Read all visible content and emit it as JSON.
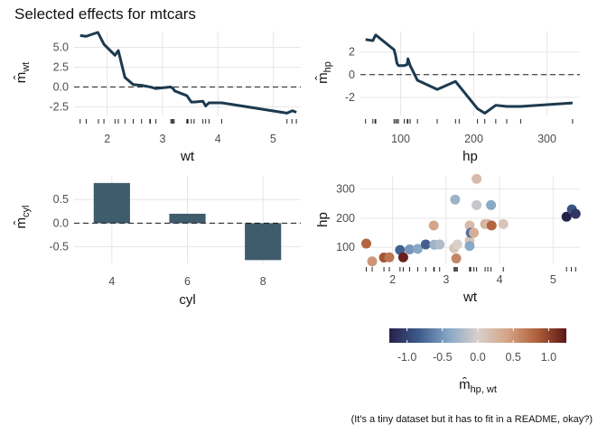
{
  "title": "Selected effects for mtcars",
  "caption": "(It's a tiny dataset but it has to fit in a README, okay?)",
  "colors": {
    "line": "#1c3a4f",
    "bar": "#3f5c6d",
    "grid": "#e6e6e6",
    "dashed": "#1a1a1a",
    "palette": [
      "#26214a",
      "#3d5b8b",
      "#86a6c6",
      "#d8d0cb",
      "#d4a486",
      "#b0603a",
      "#5c1818"
    ]
  },
  "chart_data": [
    {
      "type": "line",
      "xlabel": "wt",
      "ylabel": "m̂",
      "ylabel_sub": "wt",
      "xlim": [
        1.4,
        5.5
      ],
      "ylim": [
        -3.6,
        7.0
      ],
      "xticks": [
        2,
        3,
        4,
        5
      ],
      "yticks": [
        -2.5,
        0.0,
        2.5,
        5.0
      ],
      "ytick_labels": [
        "-2.5",
        "0.0",
        "2.5",
        "5.0"
      ],
      "reference_line": 0,
      "x": [
        1.51,
        1.62,
        1.83,
        1.94,
        2.14,
        2.2,
        2.32,
        2.47,
        2.62,
        2.78,
        2.88,
        3.15,
        3.19,
        3.22,
        3.44,
        3.52,
        3.57,
        3.73,
        3.78,
        3.84,
        4.07,
        5.25,
        5.35,
        5.42
      ],
      "y": [
        6.5,
        6.4,
        6.9,
        5.4,
        4.0,
        4.6,
        1.2,
        0.3,
        0.2,
        0.0,
        -0.2,
        0.0,
        -0.2,
        -0.5,
        -1.1,
        -1.9,
        -1.9,
        -1.8,
        -2.4,
        -2.0,
        -2.0,
        -3.3,
        -3.0,
        -3.2
      ],
      "rug": [
        1.51,
        1.62,
        1.84,
        1.94,
        2.14,
        2.2,
        2.32,
        2.47,
        2.62,
        2.77,
        2.78,
        2.88,
        3.15,
        3.17,
        3.19,
        3.21,
        3.44,
        3.45,
        3.46,
        3.52,
        3.57,
        3.73,
        3.78,
        3.84,
        4.07,
        5.25,
        5.34,
        5.42
      ]
    },
    {
      "type": "line",
      "xlabel": "hp",
      "ylabel": "m̂",
      "ylabel_sub": "hp",
      "xlim": [
        45,
        345
      ],
      "ylim": [
        -3.6,
        3.8
      ],
      "xticks": [
        100,
        200,
        300
      ],
      "yticks": [
        -2,
        0,
        2
      ],
      "ytick_labels": [
        "-2",
        "0",
        "2"
      ],
      "reference_line": 0,
      "x": [
        52,
        62,
        65,
        66,
        91,
        93,
        95,
        97,
        105,
        109,
        110,
        113,
        123,
        150,
        175,
        180,
        205,
        215,
        230,
        245,
        264,
        335
      ],
      "y": [
        3.1,
        3.0,
        3.4,
        3.5,
        2.2,
        1.7,
        1.0,
        0.8,
        0.8,
        0.9,
        1.4,
        0.8,
        -0.5,
        -1.3,
        -0.6,
        -1.0,
        -3.0,
        -3.4,
        -2.7,
        -2.8,
        -2.8,
        -2.5
      ],
      "rug": [
        52,
        62,
        65,
        66,
        91,
        93,
        95,
        97,
        105,
        109,
        110,
        113,
        123,
        150,
        175,
        180,
        205,
        215,
        230,
        245,
        264,
        335
      ]
    },
    {
      "type": "bar",
      "xlabel": "cyl",
      "ylabel": "m̂",
      "ylabel_sub": "cyl",
      "categories": [
        "4",
        "6",
        "8"
      ],
      "values": [
        0.85,
        0.2,
        -0.78
      ],
      "ylim": [
        -0.85,
        1.0
      ],
      "yticks": [
        -0.5,
        0.0,
        0.5
      ],
      "ytick_labels": [
        "-0.5",
        "0.0",
        "0.5"
      ],
      "reference_line": 0
    },
    {
      "type": "scatter",
      "xlabel": "wt",
      "ylabel": "hp",
      "xlim": [
        1.4,
        5.5
      ],
      "ylim": [
        45,
        345
      ],
      "xticks": [
        2,
        3,
        4,
        5
      ],
      "yticks": [
        100,
        200,
        300
      ],
      "points": [
        {
          "x": 1.51,
          "y": 113,
          "m": 0.8
        },
        {
          "x": 1.62,
          "y": 52,
          "m": 0.5
        },
        {
          "x": 1.84,
          "y": 65,
          "m": 0.9
        },
        {
          "x": 1.94,
          "y": 66,
          "m": 0.7
        },
        {
          "x": 2.14,
          "y": 91,
          "m": -0.8
        },
        {
          "x": 2.2,
          "y": 66,
          "m": 1.2
        },
        {
          "x": 2.32,
          "y": 93,
          "m": -0.5
        },
        {
          "x": 2.47,
          "y": 95,
          "m": -0.4
        },
        {
          "x": 2.62,
          "y": 110,
          "m": -0.8
        },
        {
          "x": 2.77,
          "y": 175,
          "m": 0.4
        },
        {
          "x": 2.78,
          "y": 109,
          "m": -0.3
        },
        {
          "x": 2.88,
          "y": 110,
          "m": -0.2
        },
        {
          "x": 3.15,
          "y": 97,
          "m": 0.1
        },
        {
          "x": 3.17,
          "y": 264,
          "m": -0.3
        },
        {
          "x": 3.19,
          "y": 62,
          "m": 0.6
        },
        {
          "x": 3.21,
          "y": 110,
          "m": 0.0
        },
        {
          "x": 3.44,
          "y": 175,
          "m": 0.2
        },
        {
          "x": 3.44,
          "y": 123,
          "m": 0.1
        },
        {
          "x": 3.44,
          "y": 105,
          "m": -0.4
        },
        {
          "x": 3.46,
          "y": 150,
          "m": -0.7
        },
        {
          "x": 3.52,
          "y": 150,
          "m": 0.3
        },
        {
          "x": 3.57,
          "y": 335,
          "m": 0.2
        },
        {
          "x": 3.57,
          "y": 245,
          "m": -0.1
        },
        {
          "x": 3.73,
          "y": 180,
          "m": 0.3
        },
        {
          "x": 3.78,
          "y": 180,
          "m": 0.2
        },
        {
          "x": 3.84,
          "y": 245,
          "m": -0.4
        },
        {
          "x": 3.85,
          "y": 175,
          "m": 0.8
        },
        {
          "x": 4.07,
          "y": 180,
          "m": 0.1
        },
        {
          "x": 5.25,
          "y": 205,
          "m": -1.25
        },
        {
          "x": 5.35,
          "y": 230,
          "m": -0.9
        },
        {
          "x": 5.42,
          "y": 215,
          "m": -1.1
        }
      ],
      "rug": [
        1.51,
        1.62,
        1.84,
        1.94,
        2.14,
        2.2,
        2.32,
        2.47,
        2.62,
        2.77,
        2.78,
        2.88,
        3.15,
        3.17,
        3.19,
        3.21,
        3.44,
        3.45,
        3.46,
        3.52,
        3.57,
        3.73,
        3.78,
        3.84,
        4.07,
        5.25,
        5.34,
        5.42
      ],
      "colorbar": {
        "title": "m̂",
        "title_sub": "hp, wt",
        "range": [
          -1.25,
          1.25
        ],
        "ticks": [
          -1.0,
          -0.5,
          0.0,
          0.5,
          1.0
        ],
        "tick_labels": [
          "-1.0",
          "-0.5",
          "0.0",
          "0.5",
          "1.0"
        ]
      }
    }
  ]
}
